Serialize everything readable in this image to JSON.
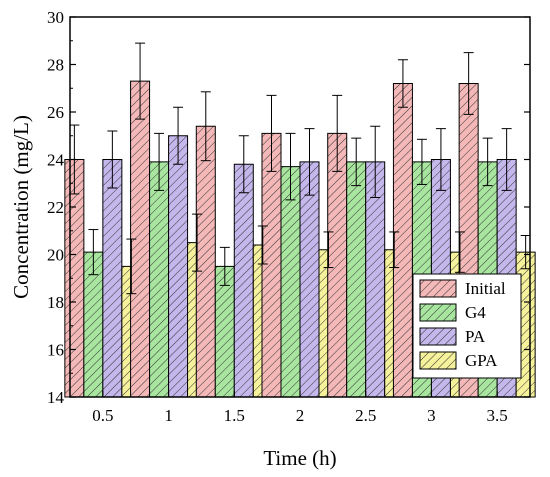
{
  "chart_data": {
    "type": "bar",
    "xlabel": "Time (h)",
    "ylabel": "Concentration (mg/L)",
    "categories": [
      "0.5",
      "1",
      "1.5",
      "2",
      "2.5",
      "3",
      "3.5"
    ],
    "ylim": [
      14,
      30
    ],
    "yticks": [
      "14",
      "16",
      "18",
      "20",
      "22",
      "24",
      "26",
      "28",
      "30"
    ],
    "legend_position": "bottom-right",
    "grid": false,
    "series": [
      {
        "name": "Initial",
        "color": "#f4b8b8",
        "values": [
          24.0,
          27.3,
          25.4,
          25.1,
          25.1,
          27.2,
          27.2
        ],
        "errors": [
          1.45,
          1.6,
          1.45,
          1.6,
          1.6,
          1.0,
          1.3
        ]
      },
      {
        "name": "G4",
        "color": "#a8e6a0",
        "values": [
          20.1,
          23.9,
          19.5,
          23.7,
          23.9,
          23.9,
          23.9
        ],
        "errors": [
          0.95,
          1.2,
          0.8,
          1.4,
          1.0,
          0.95,
          1.0
        ]
      },
      {
        "name": "PA",
        "color": "#c3b7ec",
        "values": [
          24.0,
          25.0,
          23.8,
          23.9,
          23.9,
          24.0,
          24.0
        ],
        "errors": [
          1.2,
          1.2,
          1.2,
          1.4,
          1.5,
          1.3,
          1.3
        ]
      },
      {
        "name": "GPA",
        "color": "#f6f29c",
        "values": [
          19.5,
          20.5,
          20.4,
          20.2,
          20.2,
          20.1,
          20.1
        ],
        "errors": [
          1.15,
          1.2,
          0.8,
          0.75,
          0.75,
          0.85,
          0.7
        ]
      }
    ]
  }
}
